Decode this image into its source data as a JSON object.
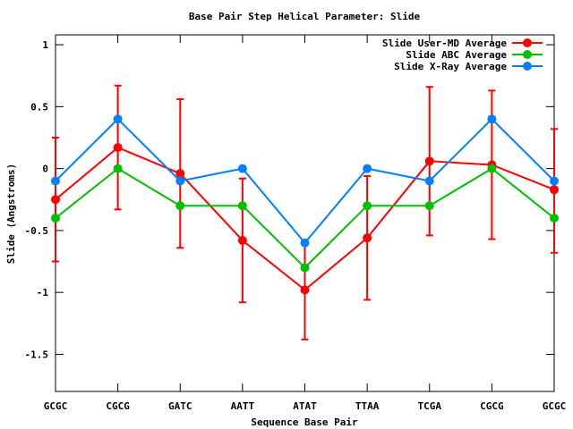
{
  "chart_data": {
    "type": "line",
    "title": "Base Pair Step Helical Parameter: Slide",
    "xlabel": "Sequence Base Pair",
    "ylabel": "Slide (Angstroms)",
    "categories": [
      "GCGC",
      "CGCG",
      "GATC",
      "AATT",
      "ATAT",
      "TTAA",
      "TCGA",
      "CGCG",
      "GCGC"
    ],
    "ylim": [
      -1.8,
      1.08
    ],
    "yticks": [
      1,
      0.5,
      0,
      -0.5,
      -1,
      -1.5
    ],
    "ytick_labels": [
      "1",
      "0.5",
      "0",
      "-0.5",
      "-1",
      "-1.5"
    ],
    "legend_position": "top-right",
    "grid": false,
    "series": [
      {
        "name": "Slide User-MD Average",
        "color": "#ff0000",
        "values": [
          -0.25,
          0.17,
          -0.04,
          -0.58,
          -0.98,
          -0.56,
          0.06,
          0.03,
          -0.17
        ],
        "error_low": [
          -0.75,
          -0.33,
          -0.64,
          -1.08,
          -1.38,
          -1.06,
          -0.54,
          -0.57,
          -0.68
        ],
        "error_high": [
          0.25,
          0.67,
          0.56,
          -0.08,
          -0.58,
          -0.06,
          0.66,
          0.63,
          0.32
        ]
      },
      {
        "name": "Slide ABC Average",
        "color": "#00c000",
        "values": [
          -0.4,
          0.0,
          -0.3,
          -0.3,
          -0.8,
          -0.3,
          -0.3,
          0.0,
          -0.4
        ]
      },
      {
        "name": "Slide X-Ray Average",
        "color": "#0080ff",
        "values": [
          -0.1,
          0.4,
          -0.1,
          0.0,
          -0.6,
          0.0,
          -0.1,
          0.4,
          -0.1
        ]
      }
    ]
  }
}
